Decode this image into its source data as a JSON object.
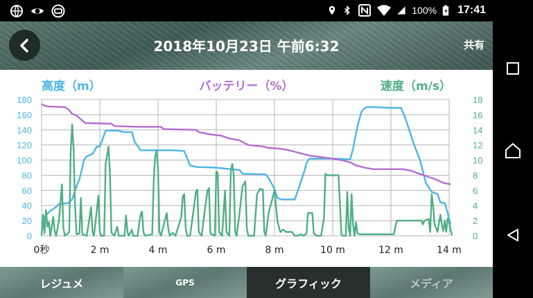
{
  "status_bar": {
    "icons_left": [
      "globe-icon",
      "eye-icon",
      "app-notification-icon"
    ],
    "icons_right": [
      "location-icon",
      "bluetooth-icon",
      "nfc-icon",
      "wifi-icon",
      "signal-icon",
      "battery-icon"
    ],
    "battery": "100%",
    "time": "17:41"
  },
  "header": {
    "back_icon": "chevron-left-icon",
    "title": "2018年10月23日 午前6:32",
    "share_label": "共有"
  },
  "colors": {
    "altitude": "#4db5e6",
    "battery": "#b36cd0",
    "speed": "#4fae86",
    "grid": "#b5b5b5",
    "active_tab": "#27302e"
  },
  "chart_data": {
    "type": "line",
    "legend": {
      "altitude": "高度（m）",
      "battery": "バッテリー（%）",
      "speed": "速度（m/s）"
    },
    "x_unit": "minutes",
    "x_ticks": [
      0,
      2,
      4,
      6,
      8,
      10,
      12,
      14
    ],
    "x_tick_labels": [
      "0秒",
      "2 m",
      "4 m",
      "6 m",
      "8 m",
      "10 m",
      "12 m",
      "14 m"
    ],
    "xlim": [
      0,
      14
    ],
    "y_left_ticks": [
      0,
      20,
      40,
      60,
      80,
      100,
      120,
      140,
      160,
      180
    ],
    "y_left_lim": [
      0,
      180
    ],
    "y_right_ticks": [
      0,
      2,
      4,
      6,
      8,
      10,
      12,
      14,
      16,
      18
    ],
    "y_right_lim": [
      0,
      18
    ],
    "grid": true,
    "series": [
      {
        "name": "高度（m）",
        "axis": "left",
        "points": [
          [
            0,
            15
          ],
          [
            0.1,
            25
          ],
          [
            0.3,
            33
          ],
          [
            0.5,
            38
          ],
          [
            0.6,
            42
          ],
          [
            0.9,
            43
          ],
          [
            1.05,
            48
          ],
          [
            1.15,
            60
          ],
          [
            1.3,
            75
          ],
          [
            1.4,
            90
          ],
          [
            1.45,
            100
          ],
          [
            1.55,
            105
          ],
          [
            1.75,
            108
          ],
          [
            1.9,
            118
          ],
          [
            2.0,
            118
          ],
          [
            2.1,
            128
          ],
          [
            2.2,
            139
          ],
          [
            2.6,
            139
          ],
          [
            2.85,
            137
          ],
          [
            3.1,
            137
          ],
          [
            3.2,
            124
          ],
          [
            3.4,
            113
          ],
          [
            4.5,
            113
          ],
          [
            4.9,
            112
          ],
          [
            5.1,
            93
          ],
          [
            5.3,
            91
          ],
          [
            6.0,
            90
          ],
          [
            6.5,
            88
          ],
          [
            6.8,
            87
          ],
          [
            6.9,
            82
          ],
          [
            7.7,
            81
          ],
          [
            7.8,
            76
          ],
          [
            8.0,
            62
          ],
          [
            8.1,
            50
          ],
          [
            8.25,
            48
          ],
          [
            8.7,
            48
          ],
          [
            8.85,
            65
          ],
          [
            9.0,
            82
          ],
          [
            9.1,
            96
          ],
          [
            9.2,
            102
          ],
          [
            9.9,
            102
          ],
          [
            10.1,
            102
          ],
          [
            10.6,
            101
          ],
          [
            10.7,
            115
          ],
          [
            10.8,
            135
          ],
          [
            10.9,
            152
          ],
          [
            11.0,
            165
          ],
          [
            11.15,
            170
          ],
          [
            11.4,
            170
          ],
          [
            12.0,
            169
          ],
          [
            12.35,
            169
          ],
          [
            12.5,
            155
          ],
          [
            12.8,
            120
          ],
          [
            13.0,
            100
          ],
          [
            13.2,
            70
          ],
          [
            13.4,
            58
          ],
          [
            13.6,
            55
          ],
          [
            13.7,
            44
          ],
          [
            13.85,
            43
          ],
          [
            13.95,
            30
          ],
          [
            14.0,
            22
          ],
          [
            14.05,
            15
          ]
        ]
      },
      {
        "name": "バッテリー（%）",
        "axis": "left",
        "points": [
          [
            0,
            174
          ],
          [
            0.1,
            172
          ],
          [
            0.2,
            171
          ],
          [
            0.8,
            170
          ],
          [
            0.95,
            166
          ],
          [
            1.05,
            161
          ],
          [
            1.2,
            159
          ],
          [
            1.4,
            152
          ],
          [
            1.5,
            149
          ],
          [
            2.4,
            148
          ],
          [
            2.5,
            145
          ],
          [
            3.3,
            144
          ],
          [
            4.1,
            144
          ],
          [
            4.2,
            141
          ],
          [
            5.3,
            140
          ],
          [
            5.4,
            137
          ],
          [
            5.8,
            134
          ],
          [
            6.0,
            133
          ],
          [
            6.2,
            132
          ],
          [
            6.4,
            129
          ],
          [
            6.8,
            126
          ],
          [
            6.95,
            123
          ],
          [
            7.1,
            120
          ],
          [
            7.6,
            118
          ],
          [
            7.8,
            116
          ],
          [
            8.2,
            115
          ],
          [
            8.5,
            113
          ],
          [
            8.8,
            110
          ],
          [
            9.2,
            106
          ],
          [
            9.6,
            104
          ],
          [
            10.0,
            102
          ],
          [
            10.4,
            99
          ],
          [
            10.6,
            97
          ],
          [
            10.8,
            93
          ],
          [
            11.1,
            90
          ],
          [
            11.4,
            88
          ],
          [
            12.4,
            88
          ],
          [
            12.7,
            86
          ],
          [
            12.9,
            83
          ],
          [
            13.2,
            79
          ],
          [
            13.5,
            75
          ],
          [
            13.8,
            70
          ],
          [
            14.05,
            68
          ]
        ]
      },
      {
        "name": "速度（m/s）",
        "axis": "right",
        "points": [
          [
            0,
            0
          ],
          [
            0.05,
            2.8
          ],
          [
            0.1,
            0.3
          ],
          [
            0.15,
            3.4
          ],
          [
            0.2,
            1.2
          ],
          [
            0.25,
            1.8
          ],
          [
            0.3,
            0
          ],
          [
            0.4,
            2.5
          ],
          [
            0.45,
            0.6
          ],
          [
            0.5,
            0
          ],
          [
            0.6,
            2.1
          ],
          [
            0.7,
            6.8
          ],
          [
            0.75,
            1
          ],
          [
            0.8,
            0
          ],
          [
            0.9,
            0.3
          ],
          [
            0.95,
            0.5
          ],
          [
            1.0,
            11
          ],
          [
            1.05,
            14.7
          ],
          [
            1.1,
            11.5
          ],
          [
            1.15,
            4
          ],
          [
            1.2,
            0.2
          ],
          [
            1.3,
            0.3
          ],
          [
            1.35,
            5
          ],
          [
            1.4,
            0.2
          ],
          [
            1.55,
            0
          ],
          [
            1.6,
            1.2
          ],
          [
            1.7,
            3.8
          ],
          [
            1.75,
            0.5
          ],
          [
            1.8,
            0
          ],
          [
            1.9,
            3.5
          ],
          [
            1.95,
            5.3
          ],
          [
            2.0,
            0.5
          ],
          [
            2.05,
            0
          ],
          [
            2.15,
            0
          ],
          [
            2.2,
            9.5
          ],
          [
            2.3,
            11.8
          ],
          [
            2.35,
            8
          ],
          [
            2.4,
            0.4
          ],
          [
            2.5,
            0
          ],
          [
            2.6,
            1.2
          ],
          [
            2.65,
            0
          ],
          [
            2.85,
            0
          ],
          [
            2.9,
            2.7
          ],
          [
            2.95,
            0.5
          ],
          [
            3.0,
            0
          ],
          [
            3.1,
            0.8
          ],
          [
            3.15,
            0
          ],
          [
            3.3,
            0
          ],
          [
            3.35,
            1.5
          ],
          [
            3.4,
            2.8
          ],
          [
            3.45,
            3.2
          ],
          [
            3.5,
            0.5
          ],
          [
            3.55,
            0
          ],
          [
            3.8,
            0.2
          ],
          [
            3.85,
            7
          ],
          [
            3.9,
            10.5
          ],
          [
            3.95,
            11.2
          ],
          [
            4.0,
            9
          ],
          [
            4.05,
            0.5
          ],
          [
            4.1,
            0
          ],
          [
            4.3,
            3
          ],
          [
            4.35,
            1
          ],
          [
            4.4,
            0
          ],
          [
            4.5,
            0.4
          ],
          [
            4.6,
            0
          ],
          [
            4.8,
            2.5
          ],
          [
            4.85,
            5.2
          ],
          [
            4.9,
            5.5
          ],
          [
            4.95,
            1
          ],
          [
            5.0,
            0
          ],
          [
            5.1,
            0
          ],
          [
            5.2,
            2.8
          ],
          [
            5.3,
            5.8
          ],
          [
            5.35,
            6.1
          ],
          [
            5.4,
            0.5
          ],
          [
            5.5,
            0
          ],
          [
            5.6,
            3.2
          ],
          [
            5.7,
            6
          ],
          [
            5.75,
            6.3
          ],
          [
            5.8,
            0.3
          ],
          [
            5.95,
            0
          ],
          [
            6.0,
            8.5
          ],
          [
            6.05,
            8.3
          ],
          [
            6.1,
            0.5
          ],
          [
            6.2,
            0
          ],
          [
            6.3,
            6
          ],
          [
            6.35,
            0.5
          ],
          [
            6.45,
            0
          ],
          [
            6.5,
            8.5
          ],
          [
            6.55,
            9.5
          ],
          [
            6.6,
            8
          ],
          [
            6.65,
            0.5
          ],
          [
            6.7,
            0
          ],
          [
            6.8,
            3
          ],
          [
            6.9,
            6.5
          ],
          [
            7.0,
            7.2
          ],
          [
            7.05,
            1
          ],
          [
            7.1,
            0
          ],
          [
            7.3,
            0
          ],
          [
            7.4,
            5.5
          ],
          [
            7.5,
            6.2
          ],
          [
            7.6,
            6.1
          ],
          [
            7.65,
            0.5
          ],
          [
            7.7,
            0
          ],
          [
            7.8,
            3
          ],
          [
            7.9,
            4.5
          ],
          [
            8.0,
            6
          ],
          [
            8.1,
            2
          ],
          [
            8.2,
            0.5
          ],
          [
            8.3,
            0.8
          ],
          [
            8.4,
            0.5
          ],
          [
            8.6,
            0.5
          ],
          [
            8.7,
            0
          ],
          [
            8.8,
            0
          ],
          [
            8.9,
            0.2
          ],
          [
            9.0,
            0
          ],
          [
            9.1,
            0.3
          ],
          [
            9.15,
            3
          ],
          [
            9.2,
            3
          ],
          [
            9.3,
            3
          ],
          [
            9.35,
            0.3
          ],
          [
            9.45,
            0
          ],
          [
            9.6,
            0
          ],
          [
            9.7,
            2.3
          ],
          [
            9.75,
            8.2
          ],
          [
            9.8,
            8
          ],
          [
            10.1,
            8
          ],
          [
            10.2,
            8
          ],
          [
            10.3,
            0.2
          ],
          [
            10.35,
            0
          ],
          [
            10.45,
            0
          ],
          [
            10.5,
            5.8
          ],
          [
            10.55,
            1
          ],
          [
            10.6,
            0
          ],
          [
            10.65,
            5.5
          ],
          [
            10.7,
            1.5
          ],
          [
            10.75,
            0
          ],
          [
            10.8,
            1.8
          ],
          [
            10.85,
            0.3
          ],
          [
            10.95,
            0.2
          ],
          [
            11.3,
            0.2
          ],
          [
            11.6,
            0.2
          ],
          [
            12.0,
            0.2
          ],
          [
            12.1,
            0.2
          ],
          [
            12.2,
            2
          ],
          [
            12.4,
            2
          ],
          [
            12.8,
            2
          ],
          [
            13.05,
            2
          ],
          [
            13.1,
            1.5
          ],
          [
            13.15,
            2
          ],
          [
            13.3,
            2.2
          ],
          [
            13.35,
            0.5
          ],
          [
            13.4,
            5.5
          ],
          [
            13.45,
            4
          ],
          [
            13.5,
            1.5
          ],
          [
            13.6,
            0.5
          ],
          [
            13.7,
            2.8
          ],
          [
            13.75,
            1.5
          ],
          [
            13.8,
            0.6
          ],
          [
            13.85,
            2
          ],
          [
            13.9,
            0.5
          ],
          [
            13.95,
            2.3
          ],
          [
            14.0,
            1.8
          ],
          [
            14.05,
            0.8
          ],
          [
            14.1,
            0
          ]
        ]
      }
    ]
  },
  "tabs": [
    {
      "label": "レジュメ",
      "state": "normal"
    },
    {
      "label": "GPS",
      "state": "normal"
    },
    {
      "label": "グラフィック",
      "state": "active"
    },
    {
      "label": "メディア",
      "state": "disabled"
    }
  ],
  "nav_bar": {
    "buttons": [
      "recents-square-icon",
      "home-icon",
      "back-triangle-icon"
    ]
  }
}
